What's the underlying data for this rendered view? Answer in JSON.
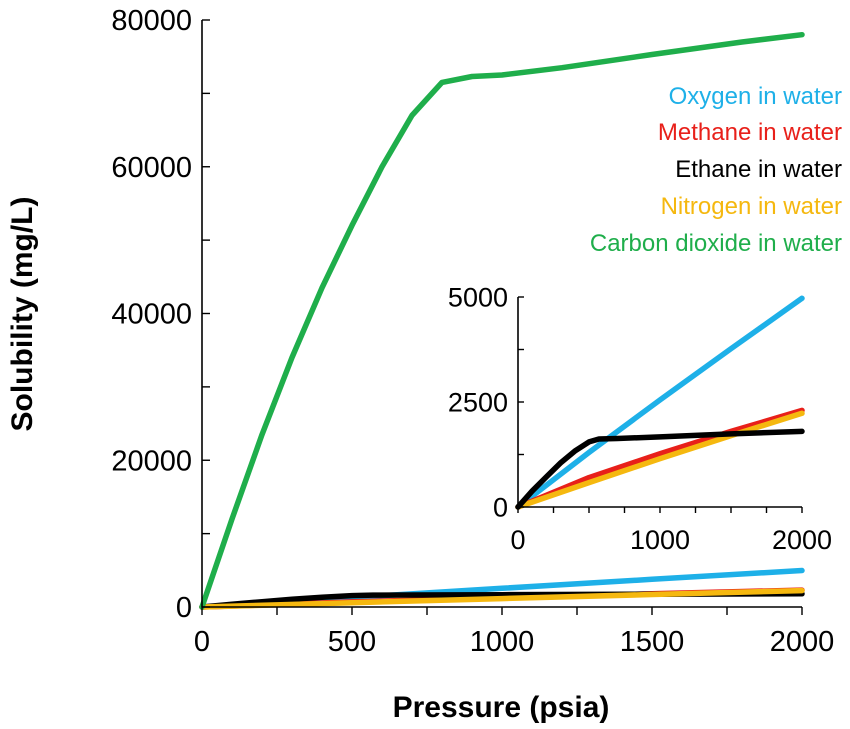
{
  "chart_data": [
    {
      "type": "line",
      "title": "",
      "xlabel": "Pressure (psia)",
      "ylabel": "Solubility (mg/L)",
      "xlim": [
        0,
        2000
      ],
      "ylim": [
        0,
        80000
      ],
      "xticks": [
        "0",
        "500",
        "1000",
        "1500",
        "2000"
      ],
      "yticks": [
        "0",
        "20000",
        "40000",
        "60000",
        "80000"
      ],
      "grid": false,
      "legend_position": "top-right",
      "series": [
        {
          "name": "Oxygen in water",
          "color": "#1eb0e8",
          "x": [
            0,
            500,
            1000,
            1500,
            2000
          ],
          "y": [
            0,
            1300,
            2550,
            3770,
            4970
          ]
        },
        {
          "name": "Methane in water",
          "color": "#e8201a",
          "x": [
            0,
            500,
            1000,
            1500,
            2000
          ],
          "y": [
            0,
            700,
            1270,
            1800,
            2300
          ]
        },
        {
          "name": "Ethane in water",
          "color": "#000000",
          "x": [
            0,
            100,
            200,
            300,
            400,
            500,
            570,
            700,
            1000,
            1500,
            2000
          ],
          "y": [
            0,
            380,
            720,
            1050,
            1330,
            1550,
            1620,
            1630,
            1670,
            1740,
            1800
          ]
        },
        {
          "name": "Nitrogen in water",
          "color": "#f5b80f",
          "x": [
            0,
            500,
            1000,
            1500,
            2000
          ],
          "y": [
            0,
            580,
            1150,
            1700,
            2230
          ]
        },
        {
          "name": "Carbon dioxide in water",
          "color": "#1fae4b",
          "x": [
            0,
            100,
            200,
            300,
            400,
            500,
            600,
            700,
            800,
            900,
            1000,
            1200,
            1500,
            1800,
            2000
          ],
          "y": [
            0,
            12000,
            23500,
            34000,
            43500,
            52000,
            60000,
            67000,
            71500,
            72300,
            72500,
            73500,
            75300,
            77000,
            78000
          ]
        }
      ]
    },
    {
      "type": "line",
      "title": "",
      "xlabel": "",
      "ylabel": "",
      "xlim": [
        0,
        2000
      ],
      "ylim": [
        0,
        5000
      ],
      "xticks": [
        "0",
        "1000",
        "2000"
      ],
      "yticks": [
        "0",
        "2500",
        "5000"
      ],
      "grid": false,
      "series": [
        {
          "name": "Oxygen in water",
          "color": "#1eb0e8",
          "x": [
            0,
            500,
            1000,
            1500,
            2000
          ],
          "y": [
            0,
            1300,
            2550,
            3770,
            4970
          ]
        },
        {
          "name": "Methane in water",
          "color": "#e8201a",
          "x": [
            0,
            500,
            1000,
            1500,
            2000
          ],
          "y": [
            0,
            700,
            1270,
            1800,
            2300
          ]
        },
        {
          "name": "Nitrogen in water",
          "color": "#f5b80f",
          "x": [
            0,
            500,
            1000,
            1500,
            2000
          ],
          "y": [
            0,
            580,
            1150,
            1700,
            2230
          ]
        },
        {
          "name": "Ethane in water",
          "color": "#000000",
          "x": [
            0,
            100,
            200,
            300,
            400,
            500,
            570,
            700,
            1000,
            1500,
            2000
          ],
          "y": [
            0,
            380,
            720,
            1050,
            1330,
            1550,
            1620,
            1630,
            1670,
            1740,
            1800
          ]
        }
      ]
    }
  ]
}
